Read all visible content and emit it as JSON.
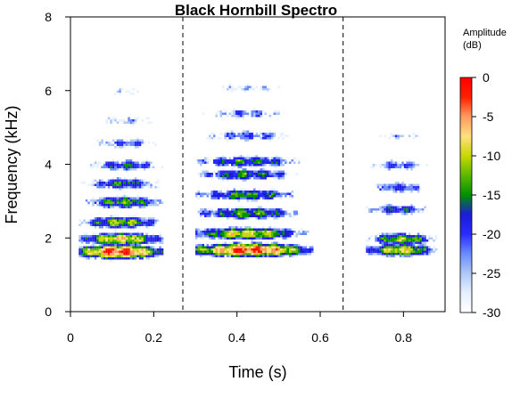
{
  "chart_data": {
    "type": "heatmap",
    "title": "Black Hornbill Spectro",
    "xlabel": "Time (s)",
    "ylabel": "Frequency (kHz)",
    "xlim": [
      0,
      0.9
    ],
    "ylim": [
      0,
      8
    ],
    "x_ticks": [
      "0",
      "0.2",
      "0.4",
      "0.6",
      "0.8"
    ],
    "x_tick_values": [
      0,
      0.2,
      0.4,
      0.6,
      0.8
    ],
    "y_ticks": [
      "0",
      "2",
      "4",
      "6",
      "8"
    ],
    "y_tick_values": [
      0,
      2,
      4,
      6,
      8
    ],
    "grid": false,
    "separators_s": [
      0.27,
      0.655
    ],
    "colorbar": {
      "title_line1": "Amplitude",
      "title_line2": "(dB)",
      "ticks": [
        "0",
        "-5",
        "-10",
        "-15",
        "-20",
        "-25",
        "-30"
      ],
      "tick_values": [
        0,
        -5,
        -10,
        -15,
        -20,
        -25,
        -30
      ],
      "range": [
        -30,
        0
      ],
      "colors": [
        "#ffffff",
        "#e6f0ff",
        "#aec8f5",
        "#6a8cff",
        "#2a2aff",
        "#1c1cd8",
        "#009000",
        "#5cb800",
        "#c8d800",
        "#ffe080",
        "#ff9a60",
        "#ff2000",
        "#ff0000"
      ]
    },
    "calls": [
      {
        "t_start": 0.02,
        "t_end": 0.22,
        "bands": [
          {
            "f": 1.65,
            "peak_db": -2,
            "t_center": 0.1
          },
          {
            "f": 2.0,
            "peak_db": -8,
            "t_center": 0.12
          },
          {
            "f": 2.45,
            "peak_db": -12,
            "t_center": 0.12
          },
          {
            "f": 3.0,
            "peak_db": -13,
            "t_center": 0.14
          },
          {
            "f": 3.5,
            "peak_db": -16,
            "t_center": 0.13
          },
          {
            "f": 4.0,
            "peak_db": -17,
            "t_center": 0.15
          },
          {
            "f": 4.6,
            "peak_db": -21,
            "t_center": 0.15
          },
          {
            "f": 5.2,
            "peak_db": -23,
            "t_center": 0.17
          },
          {
            "f": 6.0,
            "peak_db": -27,
            "t_center": 0.14
          }
        ]
      },
      {
        "t_start": 0.3,
        "t_end": 0.58,
        "bands": [
          {
            "f": 1.7,
            "peak_db": -3,
            "t_center": 0.4
          },
          {
            "f": 2.15,
            "peak_db": -9,
            "t_center": 0.38
          },
          {
            "f": 2.7,
            "peak_db": -13,
            "t_center": 0.38
          },
          {
            "f": 3.2,
            "peak_db": -14,
            "t_center": 0.37
          },
          {
            "f": 3.75,
            "peak_db": -15,
            "t_center": 0.37
          },
          {
            "f": 4.1,
            "peak_db": -15,
            "t_center": 0.38
          },
          {
            "f": 4.8,
            "peak_db": -20,
            "t_center": 0.38
          },
          {
            "f": 5.4,
            "peak_db": -22,
            "t_center": 0.38
          },
          {
            "f": 6.1,
            "peak_db": -25,
            "t_center": 0.39
          }
        ]
      },
      {
        "t_start": 0.71,
        "t_end": 0.88,
        "bands": [
          {
            "f": 1.7,
            "peak_db": -9,
            "t_center": 0.78
          },
          {
            "f": 2.0,
            "peak_db": -12,
            "t_center": 0.79
          },
          {
            "f": 2.8,
            "peak_db": -17,
            "t_center": 0.76
          },
          {
            "f": 3.4,
            "peak_db": -19,
            "t_center": 0.77
          },
          {
            "f": 4.0,
            "peak_db": -20,
            "t_center": 0.77
          },
          {
            "f": 4.8,
            "peak_db": -25,
            "t_center": 0.77
          }
        ]
      }
    ]
  }
}
